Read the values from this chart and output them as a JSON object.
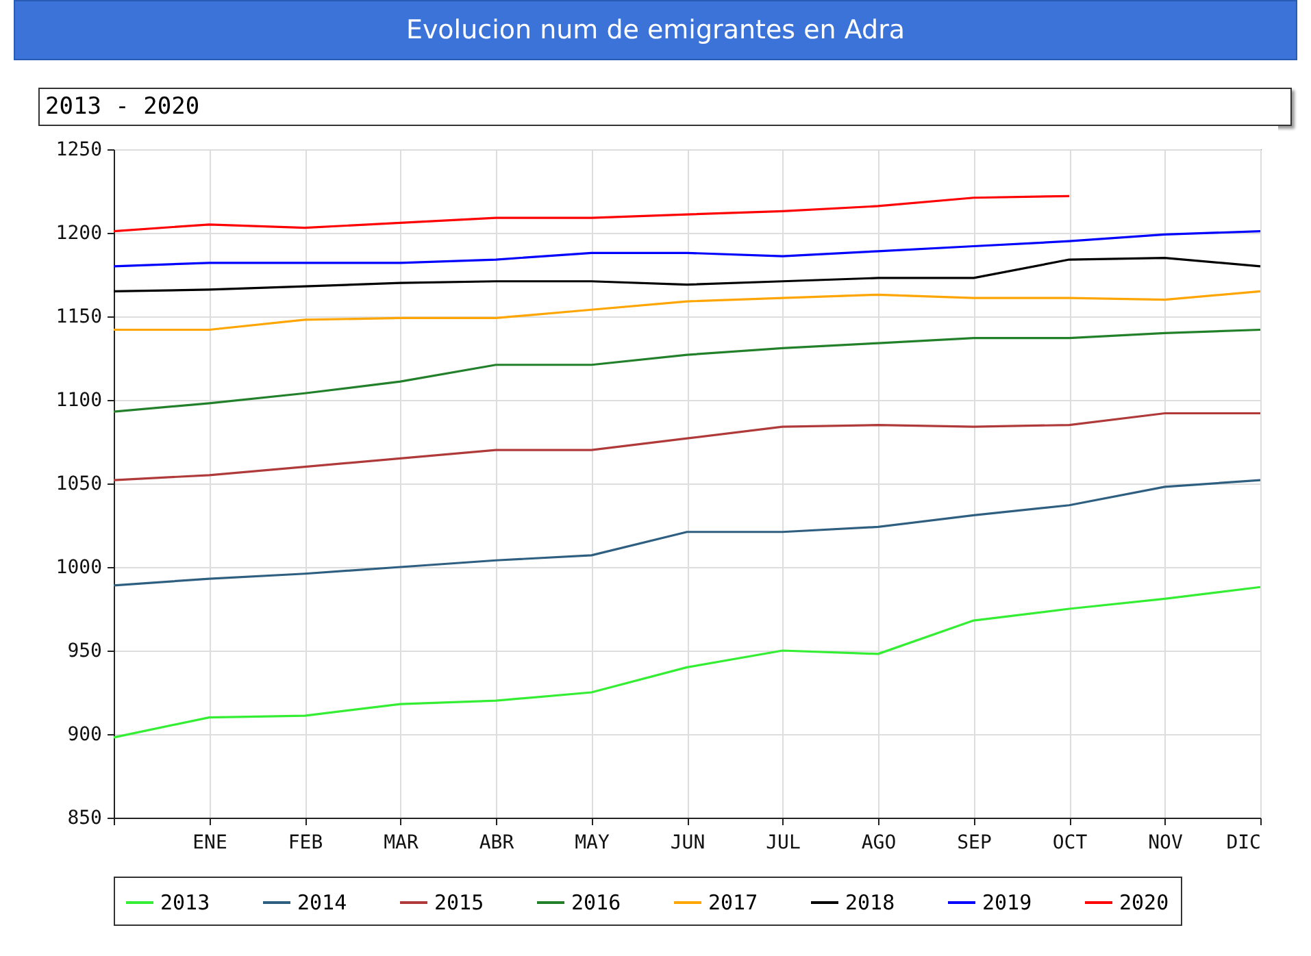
{
  "chart_data": {
    "type": "line",
    "title": "Evolucion num de emigrantes en Adra",
    "subtitle": "2013 - 2020",
    "categories": [
      null,
      "ENE",
      "FEB",
      "MAR",
      "ABR",
      "MAY",
      "JUN",
      "JUL",
      "AGO",
      "SEP",
      "OCT",
      "NOV",
      "DIC"
    ],
    "series": [
      {
        "name": "2013",
        "color": "#33ee33",
        "values": [
          898,
          910,
          911,
          918,
          920,
          925,
          940,
          950,
          948,
          968,
          975,
          981,
          988
        ]
      },
      {
        "name": "2014",
        "color": "#2f5f80",
        "values": [
          989,
          993,
          996,
          1000,
          1004,
          1007,
          1021,
          1021,
          1024,
          1031,
          1037,
          1048,
          1052
        ]
      },
      {
        "name": "2015",
        "color": "#b03a3a",
        "values": [
          1052,
          1055,
          1060,
          1065,
          1070,
          1070,
          1077,
          1084,
          1085,
          1084,
          1085,
          1092,
          1092
        ]
      },
      {
        "name": "2016",
        "color": "#22802a",
        "values": [
          1093,
          1098,
          1104,
          1111,
          1121,
          1121,
          1127,
          1131,
          1134,
          1137,
          1137,
          1140,
          1142
        ]
      },
      {
        "name": "2017",
        "color": "#ffa500",
        "values": [
          1142,
          1142,
          1148,
          1149,
          1149,
          1154,
          1159,
          1161,
          1163,
          1161,
          1161,
          1160,
          1165
        ]
      },
      {
        "name": "2018",
        "color": "#000000",
        "values": [
          1165,
          1166,
          1168,
          1170,
          1171,
          1171,
          1169,
          1171,
          1173,
          1173,
          1184,
          1185,
          1180
        ]
      },
      {
        "name": "2019",
        "color": "#0000ff",
        "values": [
          1180,
          1182,
          1182,
          1182,
          1184,
          1188,
          1188,
          1186,
          1189,
          1192,
          1195,
          1199,
          1201
        ]
      },
      {
        "name": "2020",
        "color": "#ff0000",
        "values": [
          1201,
          1205,
          1203,
          1206,
          1209,
          1209,
          1211,
          1213,
          1216,
          1221,
          1222,
          null,
          null
        ]
      }
    ],
    "ylim": [
      850,
      1250
    ],
    "yticks": [
      850,
      900,
      950,
      1000,
      1050,
      1100,
      1150,
      1200,
      1250
    ],
    "grid": true,
    "legend": "bottom",
    "line_style": "solid",
    "marker": "none"
  }
}
